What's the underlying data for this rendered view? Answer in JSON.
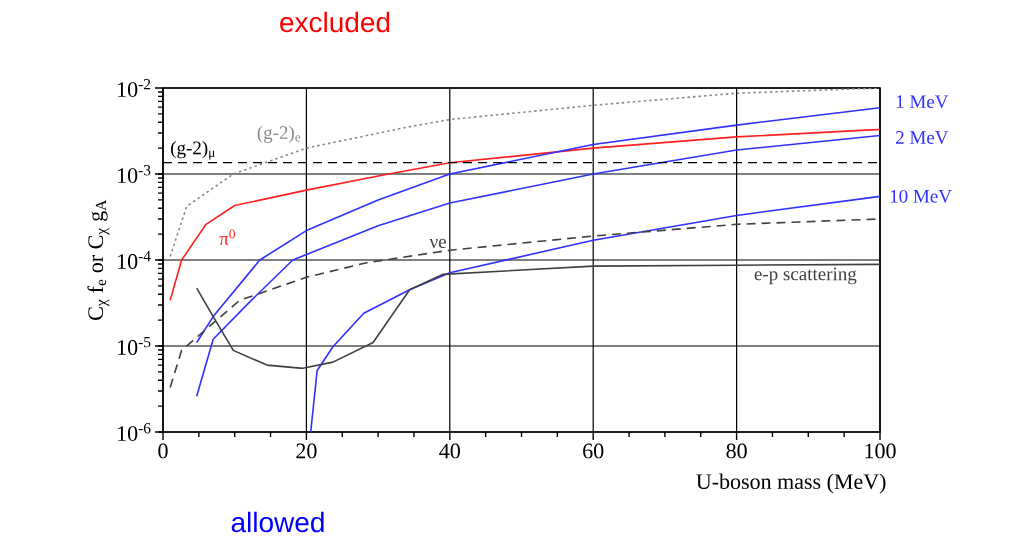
{
  "chart_data": {
    "type": "line",
    "xlabel": "U-boson mass (MeV)",
    "ylabel": "C$_{χ}$ f$_{e}$ or C$_{χ}$ g$_{A}$",
    "log": "y",
    "grid": true,
    "xlim": [
      0,
      100
    ],
    "ylim": [
      1e-06,
      0.01
    ],
    "xticks": [
      0,
      20,
      40,
      60,
      80,
      100
    ],
    "yticks": [
      {
        "value": 1e-06,
        "label": "10$^{-6}$"
      },
      {
        "value": 1e-05,
        "label": "10$^{-5}$"
      },
      {
        "value": 0.0001,
        "label": "10$^{-4}$"
      },
      {
        "value": 0.001,
        "label": "10$^{-3}$"
      },
      {
        "value": 0.01,
        "label": "10$^{-2}$"
      }
    ],
    "annotations": [
      "excluded",
      "allowed"
    ],
    "series": [
      {
        "name": "π$^{0}$",
        "color": "#ff2020",
        "line_style": "solid",
        "x": [
          1,
          2.6,
          6,
          10,
          20,
          30,
          40,
          60,
          80,
          100
        ],
        "values": [
          3.4e-05,
          0.0001,
          0.00026,
          0.00043,
          0.00065,
          0.00095,
          0.00135,
          0.002,
          0.0027,
          0.0033
        ]
      },
      {
        "name": "1 MeV",
        "color": "#3030ff",
        "line_style": "solid",
        "x": [
          4.7,
          7,
          13.5,
          20,
          30,
          40,
          60,
          80,
          100
        ],
        "values": [
          1.1e-05,
          2.2e-05,
          0.0001,
          0.00022,
          0.0005,
          0.001,
          0.0022,
          0.0037,
          0.0059
        ]
      },
      {
        "name": "2 MeV",
        "color": "#3030ff",
        "line_style": "solid",
        "x": [
          4.7,
          7,
          12,
          18.1,
          30,
          40,
          60,
          80,
          100
        ],
        "values": [
          2.6e-06,
          1.2e-05,
          3.2e-05,
          0.0001,
          0.00025,
          0.00046,
          0.001,
          0.0019,
          0.0028
        ]
      },
      {
        "name": "10 MeV",
        "color": "#3030ff",
        "line_style": "solid",
        "x": [
          20.6,
          21.5,
          23.7,
          28,
          34.4,
          40,
          60,
          80,
          100
        ],
        "values": [
          1e-06,
          5.2e-06,
          9.8e-06,
          2.4e-05,
          4.5e-05,
          7.1e-05,
          0.00017,
          0.00033,
          0.00055
        ]
      },
      {
        "name": "(g-2)$_{e}$",
        "color": "#888888",
        "line_style": "dotted",
        "x": [
          1,
          3.3,
          9.8,
          20,
          34,
          40,
          60,
          80,
          100
        ],
        "values": [
          0.00011,
          0.00042,
          0.001,
          0.002,
          0.0035,
          0.0043,
          0.0063,
          0.0087,
          0.01
        ]
      },
      {
        "name": "(g-2)$_{μ}$",
        "color": "#000000",
        "line_style": "dashed",
        "x": [
          0,
          100
        ],
        "values": [
          0.00135,
          0.00135
        ]
      },
      {
        "name": "νe",
        "color": "#404040",
        "line_style": "dashed",
        "x": [
          1,
          2.6,
          10.7,
          20,
          28.4,
          40,
          60,
          80,
          100
        ],
        "values": [
          3.3e-06,
          8.9e-06,
          3.4e-05,
          6.3e-05,
          9.3e-05,
          0.00013,
          0.00019,
          0.00026,
          0.0003
        ]
      },
      {
        "name": "e-p scattering",
        "color": "#404040",
        "line_style": "solid",
        "x": [
          4.7,
          7,
          9.8,
          14.5,
          19.5,
          23.7,
          29.3,
          34.4,
          39,
          60,
          80,
          100
        ],
        "values": [
          4.7e-05,
          2.2e-05,
          8.9e-06,
          6e-06,
          5.5e-06,
          6.5e-06,
          1.1e-05,
          4.5e-05,
          6.8e-05,
          8.5e-05,
          8.7e-05,
          8.9e-05
        ]
      }
    ]
  }
}
